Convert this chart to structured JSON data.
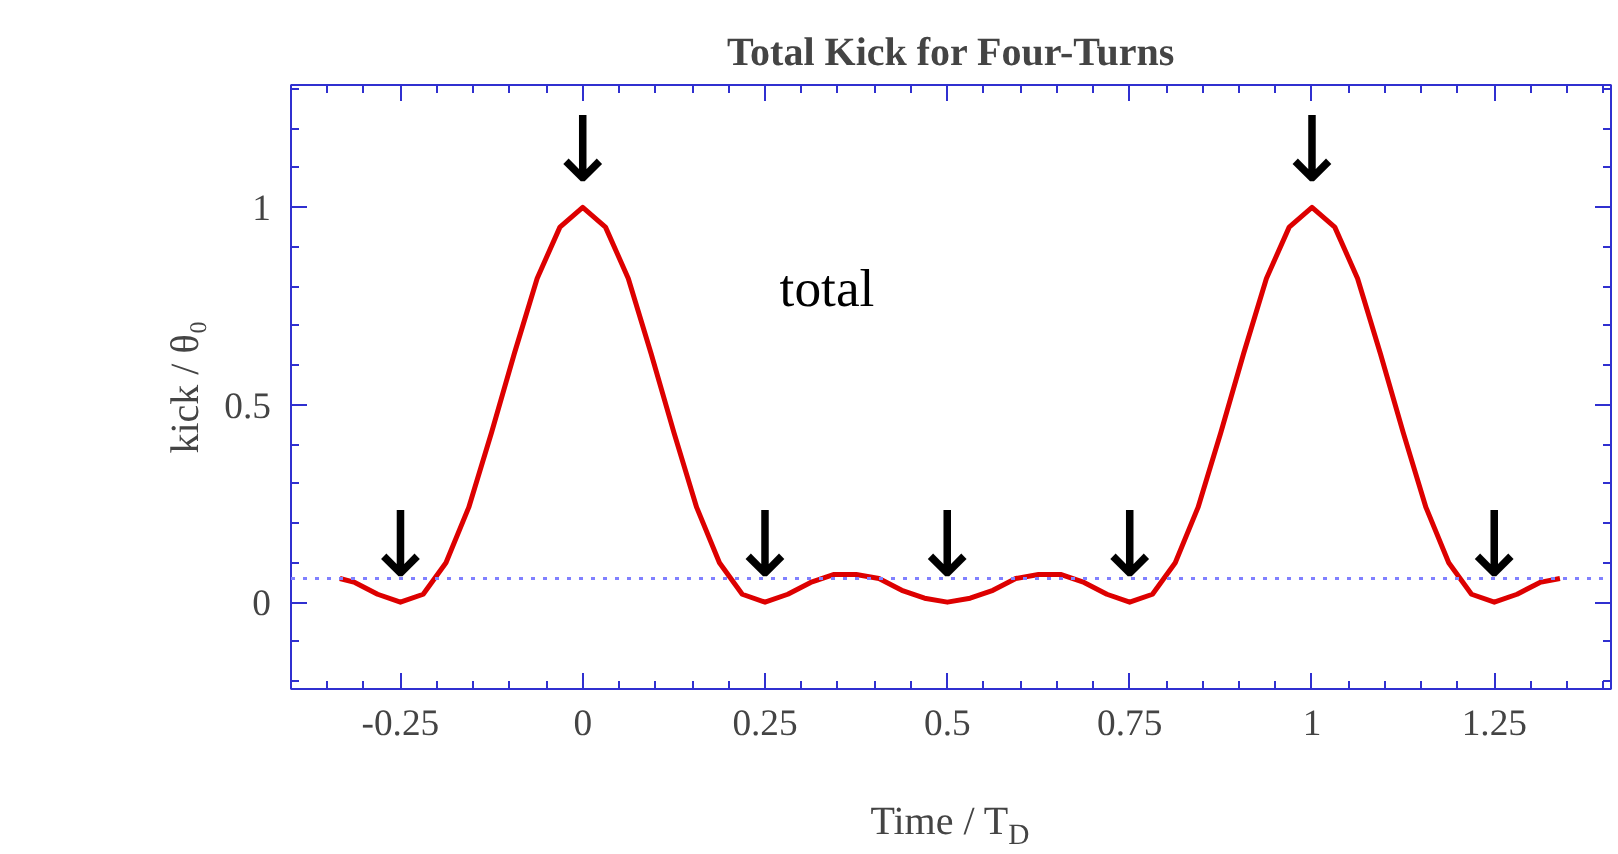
{
  "chart_data": {
    "type": "line",
    "title": "Total Kick for Four-Turns",
    "xlabel": "Time / T$_{D}$",
    "ylabel": "kick / θ₀",
    "x": [
      -0.333,
      -0.3125,
      -0.28125,
      -0.25,
      -0.21875,
      -0.1875,
      -0.15625,
      -0.125,
      -0.09375,
      -0.0625,
      -0.03125,
      0,
      0.03125,
      0.0625,
      0.09375,
      0.125,
      0.15625,
      0.1875,
      0.21875,
      0.25,
      0.28125,
      0.3125,
      0.34375,
      0.375,
      0.40625,
      0.4375,
      0.46875,
      0.5,
      0.53125,
      0.5625,
      0.59375,
      0.625,
      0.65625,
      0.6875,
      0.71875,
      0.75,
      0.78125,
      0.8125,
      0.84375,
      0.875,
      0.90625,
      0.9375,
      0.96875,
      1,
      1.03125,
      1.0625,
      1.09375,
      1.125,
      1.15625,
      1.1875,
      1.21875,
      1.25,
      1.28125,
      1.3125,
      1.34
    ],
    "series": [
      {
        "name": "total",
        "color": "#dd0000",
        "values": [
          0.06,
          0.05,
          0.02,
          0,
          0.02,
          0.1,
          0.24,
          0.43,
          0.63,
          0.82,
          0.95,
          1,
          0.95,
          0.82,
          0.63,
          0.43,
          0.24,
          0.1,
          0.02,
          0,
          0.02,
          0.05,
          0.07,
          0.07,
          0.06,
          0.03,
          0.01,
          0,
          0.01,
          0.03,
          0.06,
          0.07,
          0.07,
          0.05,
          0.02,
          0,
          0.02,
          0.1,
          0.24,
          0.43,
          0.63,
          0.82,
          0.95,
          1,
          0.95,
          0.82,
          0.63,
          0.43,
          0.24,
          0.1,
          0.02,
          0,
          0.02,
          0.05,
          0.06
        ]
      }
    ],
    "xlim": [
      -0.4,
      1.41
    ],
    "ylim": [
      -0.22,
      1.31
    ],
    "xticks": [
      -0.25,
      0,
      0.25,
      0.5,
      0.75,
      1,
      1.25
    ],
    "yticks": [
      0,
      0.5,
      1
    ],
    "ref_lines": [
      {
        "axis": "y",
        "value": 0.06,
        "color": "#8080ff",
        "line_style": "dotted"
      }
    ],
    "annotations": [
      {
        "text": "↓",
        "x": -0.25,
        "y": 0
      },
      {
        "text": "↓",
        "x": 0,
        "y": 1
      },
      {
        "text": "↓",
        "x": 0.25,
        "y": 0
      },
      {
        "text": "↓",
        "x": 0.5,
        "y": 0
      },
      {
        "text": "↓",
        "x": 0.75,
        "y": 0
      },
      {
        "text": "↓",
        "x": 1,
        "y": 1
      },
      {
        "text": "↓",
        "x": 1.25,
        "y": 0
      }
    ],
    "grid": false,
    "line_style": "solid",
    "marker": "none"
  }
}
